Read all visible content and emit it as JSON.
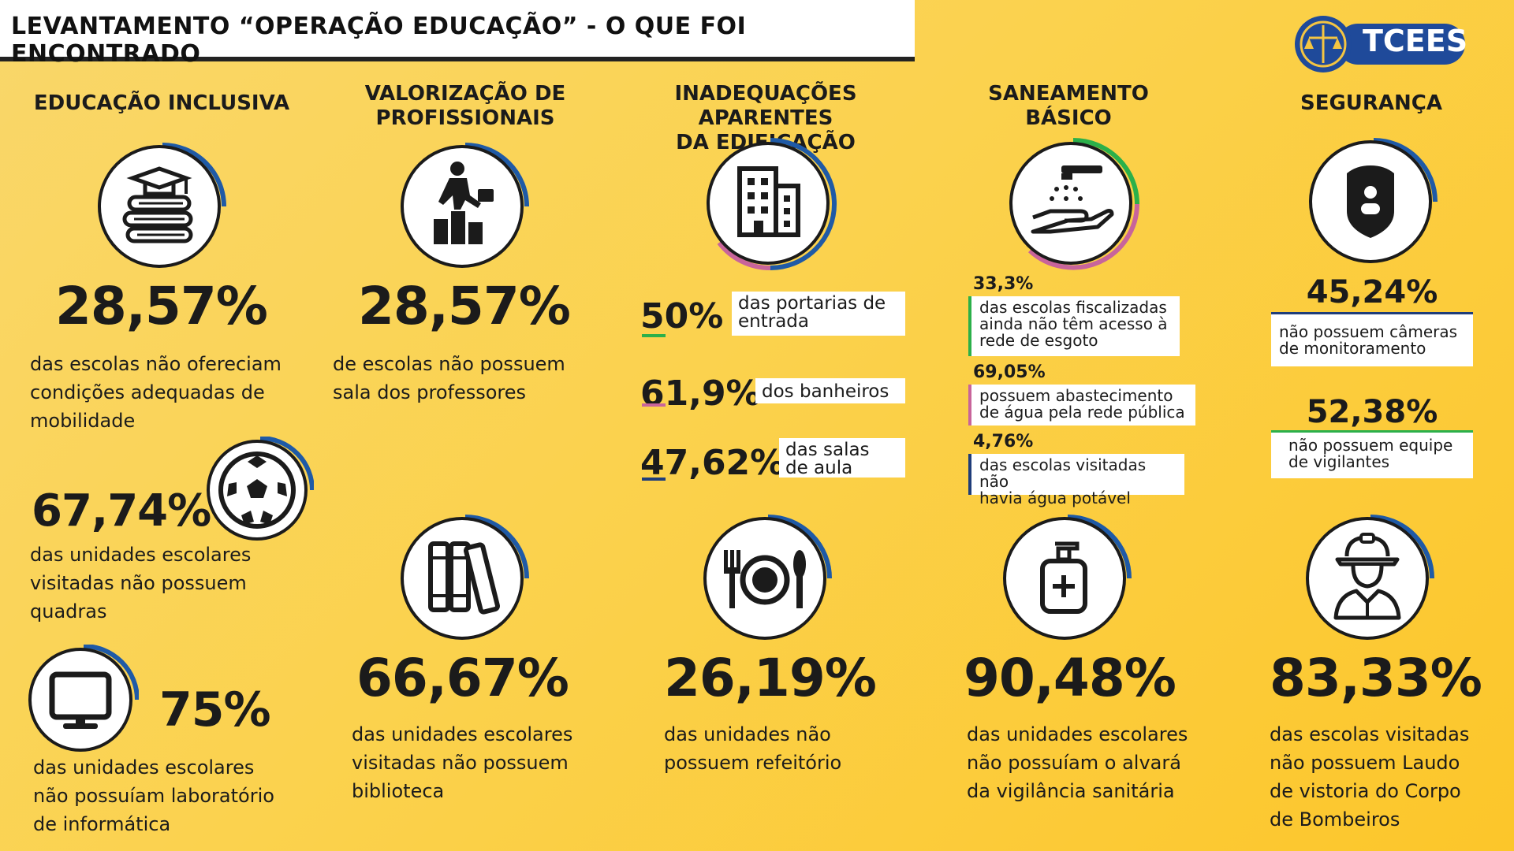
{
  "title": "LEVANTAMENTO “OPERAÇÃO EDUCAÇÃO” - O QUE FOI ENCONTRADO",
  "logo_text": "TCEES",
  "colors": {
    "ring_blue": "#1f5aa6",
    "green": "#2bb04a",
    "pink": "#c8649b",
    "navy": "#1f3d7a",
    "accent": "#fbd24e"
  },
  "sections": {
    "inclusiva": {
      "heading": "EDUCAÇÃO INCLUSIVA",
      "stat1": {
        "value": "28,57%",
        "text1": "das escolas não ofereciam",
        "text2": "condições adequadas de",
        "text3": "mobilidade"
      },
      "stat2": {
        "value": "67,74%",
        "text1": "das unidades escolares",
        "text2": "visitadas não possuem",
        "text3": "quadras"
      },
      "stat3": {
        "value": "75%",
        "text1": "das unidades escolares",
        "text2": "não possuíam laboratório",
        "text3": "de informática"
      }
    },
    "valorizacao": {
      "heading1": "VALORIZAÇÃO DE",
      "heading2": "PROFISSIONAIS",
      "stat1": {
        "value": "28,57%",
        "text1": "de escolas não possuem",
        "text2": "sala dos professores"
      },
      "stat2": {
        "value": "66,67%",
        "text1": "das unidades escolares",
        "text2": "visitadas não possuem",
        "text3": "biblioteca"
      }
    },
    "edificacao": {
      "heading1": "INADEQUAÇÕES APARENTES",
      "heading2": "DA EDIFICAÇÃO",
      "items": [
        {
          "value": "50%",
          "text1": "das portarias de",
          "text2": "entrada"
        },
        {
          "value": "61,9%",
          "text1": "dos banheiros",
          "text2": ""
        },
        {
          "value": "47,62%",
          "text1": "das salas",
          "text2": "de aula"
        }
      ],
      "stat2": {
        "value": "26,19%",
        "text1": "das unidades não",
        "text2": "possuem refeitório"
      }
    },
    "saneamento": {
      "heading1": "SANEAMENTO",
      "heading2": "BÁSICO",
      "items": [
        {
          "value": "33,3%",
          "text1": "das escolas fiscalizadas",
          "text2": "ainda não têm acesso à",
          "text3": "rede de esgoto"
        },
        {
          "value": "69,05%",
          "text1": "possuem abastecimento",
          "text2": "de água pela rede pública"
        },
        {
          "value": "4,76%",
          "text1": "das escolas visitadas não",
          "text2": "havia água potável"
        }
      ],
      "stat2": {
        "value": "90,48%",
        "text1": "das unidades escolares",
        "text2": "não possuíam o alvará",
        "text3": "da vigilância sanitária"
      }
    },
    "seguranca": {
      "heading": "SEGURANÇA",
      "items": [
        {
          "value": "45,24%",
          "text1": "não possuem câmeras",
          "text2": "de monitoramento"
        },
        {
          "value": "52,38%",
          "text1": "não possuem equipe",
          "text2": "de vigilantes"
        }
      ],
      "stat2": {
        "value": "83,33%",
        "text1": "das escolas visitadas",
        "text2": "não possuem Laudo",
        "text3": "de  vistoria do Corpo",
        "text4": "de Bombeiros"
      }
    }
  }
}
